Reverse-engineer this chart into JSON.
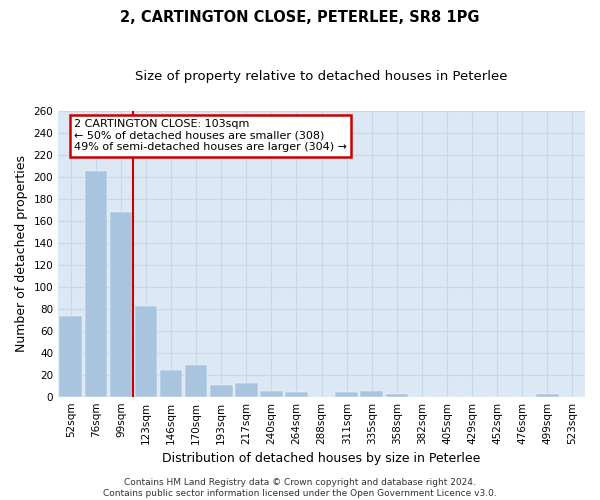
{
  "title": "2, CARTINGTON CLOSE, PETERLEE, SR8 1PG",
  "subtitle": "Size of property relative to detached houses in Peterlee",
  "xlabel": "Distribution of detached houses by size in Peterlee",
  "ylabel": "Number of detached properties",
  "categories": [
    "52sqm",
    "76sqm",
    "99sqm",
    "123sqm",
    "146sqm",
    "170sqm",
    "193sqm",
    "217sqm",
    "240sqm",
    "264sqm",
    "288sqm",
    "311sqm",
    "335sqm",
    "358sqm",
    "382sqm",
    "405sqm",
    "429sqm",
    "452sqm",
    "476sqm",
    "499sqm",
    "523sqm"
  ],
  "values": [
    73,
    205,
    168,
    82,
    24,
    29,
    11,
    12,
    5,
    4,
    0,
    4,
    5,
    2,
    0,
    0,
    0,
    0,
    0,
    2,
    0
  ],
  "bar_color": "#a8c4de",
  "vline_color": "#cc0000",
  "vline_x": 2,
  "annotation_text": "2 CARTINGTON CLOSE: 103sqm\n← 50% of detached houses are smaller (308)\n49% of semi-detached houses are larger (304) →",
  "annotation_box_edgecolor": "#cc0000",
  "annotation_box_facecolor": "#ffffff",
  "ylim": [
    0,
    260
  ],
  "yticks": [
    0,
    20,
    40,
    60,
    80,
    100,
    120,
    140,
    160,
    180,
    200,
    220,
    240,
    260
  ],
  "grid_color": "#c8d8e8",
  "background_color": "#dce8f4",
  "footer_text": "Contains HM Land Registry data © Crown copyright and database right 2024.\nContains public sector information licensed under the Open Government Licence v3.0.",
  "title_fontsize": 10.5,
  "subtitle_fontsize": 9.5,
  "xlabel_fontsize": 9,
  "ylabel_fontsize": 9,
  "tick_fontsize": 7.5,
  "annotation_fontsize": 8,
  "footer_fontsize": 6.5
}
